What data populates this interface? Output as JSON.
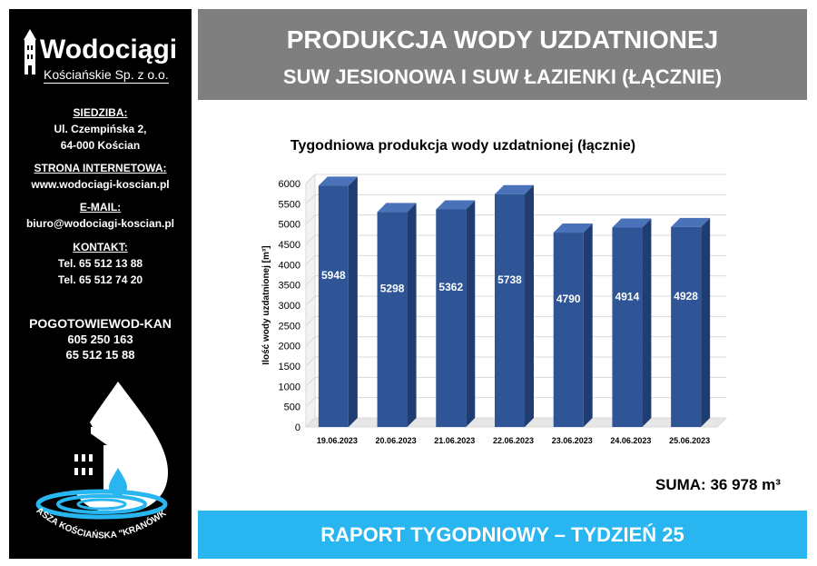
{
  "sidebar": {
    "logo_name": "Wodociągi",
    "logo_sub": "Kościańskie Sp. z o.o.",
    "siedziba": {
      "label": "SIEDZIBA:",
      "line1": "Ul. Czempińska 2,",
      "line2": "64-000 Kościan"
    },
    "strona": {
      "label": "STRONA INTERNETOWA:",
      "value": "www.wodociagi-koscian.pl"
    },
    "email": {
      "label": "E-MAIL:",
      "value": "biuro@wodociagi-koscian.pl"
    },
    "kontakt": {
      "label": "KONTAKT:",
      "tel1": "Tel. 65 512 13 88",
      "tel2": "Tel. 65 512 74 20"
    },
    "pogotowie": {
      "label": "POGOTOWIEWOD-KAN",
      "tel1": "605 250 163",
      "tel2": "65 512 15 88"
    },
    "emblem_text": "NASZA KOŚCIAŃSKA \"KRANÓWKA\""
  },
  "header": {
    "title": "PRODUKCJA WODY UZDATNIONEJ",
    "subtitle": "SUW JESIONOWA I SUW ŁAZIENKI (ŁĄCZNIE)"
  },
  "summary": {
    "text": "SUMA: 36 978 m³"
  },
  "footer": {
    "text": "RAPORT TYGODNIOWY – TYDZIEŃ 25"
  },
  "colors": {
    "bar": "#2f5597",
    "title_band": "#7f7f7f",
    "footer_band": "#29b6f0"
  },
  "chart_data": {
    "type": "bar",
    "title": "Tygodniowa produkcja wody uzdatnionej (łącznie)",
    "ylabel": "Ilość wody uzdatnionej [m³]",
    "xlabel": "",
    "categories": [
      "19.06.2023",
      "20.06.2023",
      "21.06.2023",
      "22.06.2023",
      "23.06.2023",
      "24.06.2023",
      "25.06.2023"
    ],
    "values": [
      5948,
      5298,
      5362,
      5738,
      4790,
      4914,
      4928
    ],
    "ylim": [
      0,
      6000
    ],
    "yticks": [
      "0",
      "500",
      "1000",
      "1500",
      "2000",
      "2500",
      "3000",
      "3500",
      "4000",
      "4500",
      "5000",
      "5500",
      "6000"
    ],
    "grid": true,
    "style": "3d"
  }
}
